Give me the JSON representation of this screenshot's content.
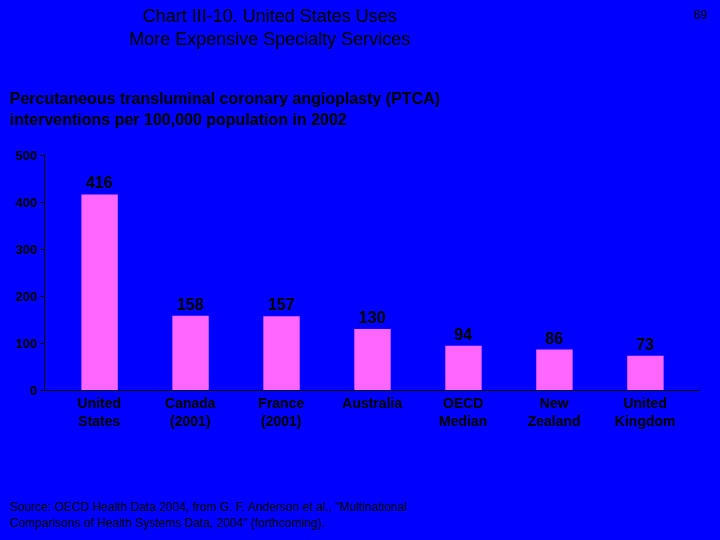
{
  "chart_data": {
    "type": "bar",
    "title": [
      "Chart III-10. United States Uses",
      "More Expensive Specialty Services"
    ],
    "subtitle": [
      "Percutaneous transluminal coronary angioplasty (PTCA)",
      "interventions per 100,000 population in 2002"
    ],
    "page_number": "69",
    "source": [
      "Source: OECD Health Data 2004, from G. F. Anderson et al., \"Multinational",
      "Comparisons of Health Systems Data, 2004\" (forthcoming)."
    ],
    "categories": [
      "United States",
      "Canada (2001)",
      "France (2001)",
      "Australia",
      "OECD Median",
      "New Zealand",
      "United Kingdom"
    ],
    "values": [
      416,
      158,
      157,
      130,
      94,
      86,
      73
    ],
    "color": "#ff66ff",
    "ylim": [
      0,
      500
    ],
    "yticks": [
      0,
      100,
      200,
      300,
      400,
      500
    ],
    "grid": false,
    "data_labels": true
  }
}
